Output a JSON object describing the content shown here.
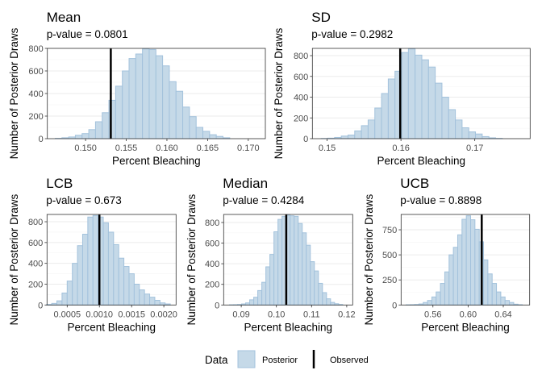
{
  "colors": {
    "bar_fill": "#c5d9e8",
    "bar_stroke": "#a3c2dc",
    "observed": "#000000",
    "grid_major": "#ebebeb",
    "grid_minor": "#f5f5f5",
    "panel_border": "#333333"
  },
  "legend": {
    "title": "Data",
    "items": [
      {
        "label": "Posterior",
        "shape": "filled-square"
      },
      {
        "label": "Observed",
        "shape": "vertical-line"
      }
    ],
    "placement": "bottom"
  },
  "chart_data": [
    {
      "type": "bar",
      "title": "Mean",
      "subtitle": "p-value = 0.0801",
      "xlabel": "Percent Bleaching",
      "ylabel": "Number of Posterior Draws",
      "xlim": [
        0.1453,
        0.1721
      ],
      "ylim": [
        0,
        800
      ],
      "grid": true,
      "xticks": [
        "0.150",
        "0.155",
        "0.160",
        "0.165",
        "0.170"
      ],
      "yticks": [
        "0",
        "200",
        "400",
        "600",
        "800"
      ],
      "bin_start": 0.14627,
      "bin_width": 0.000825,
      "counts": [
        3,
        8,
        15,
        30,
        45,
        80,
        150,
        230,
        340,
        465,
        600,
        710,
        750,
        795,
        790,
        735,
        645,
        505,
        420,
        280,
        195,
        100,
        65,
        35,
        20,
        8
      ],
      "observed": 0.1531
    },
    {
      "type": "bar",
      "title": "SD",
      "subtitle": "p-value = 0.2982",
      "xlabel": "Percent Bleaching",
      "ylabel": "Number of Posterior Draws",
      "xlim": [
        0.148,
        0.1775
      ],
      "ylim": [
        0,
        870
      ],
      "grid": true,
      "xticks": [
        "0.15",
        "0.16",
        "0.17"
      ],
      "yticks": [
        "0",
        "200",
        "400",
        "600",
        "800"
      ],
      "bin_start": 0.14919,
      "bin_width": 0.000909,
      "counts": [
        2,
        5,
        12,
        25,
        35,
        75,
        125,
        180,
        295,
        435,
        575,
        650,
        830,
        865,
        805,
        760,
        690,
        535,
        400,
        280,
        180,
        105,
        65,
        45,
        20,
        8,
        3
      ],
      "observed": 0.1599
    },
    {
      "type": "bar",
      "title": "LCB",
      "subtitle": "p-value = 0.673",
      "xlabel": "Percent Bleaching",
      "ylabel": "Number of Posterior Draws",
      "xlim": [
        0.000187,
        0.00219
      ],
      "ylim": [
        0,
        870
      ],
      "grid": true,
      "xticks": [
        "0.0005",
        "0.0010",
        "0.0015",
        "0.0020"
      ],
      "yticks": [
        "0",
        "200",
        "400",
        "600",
        "800"
      ],
      "bin_start": 0.00018,
      "bin_width": 8e-05,
      "counts": [
        5,
        15,
        40,
        115,
        230,
        400,
        570,
        680,
        845,
        860,
        845,
        790,
        700,
        580,
        450,
        370,
        300,
        200,
        145,
        105,
        75,
        45,
        20,
        10
      ],
      "observed": 0.001
    },
    {
      "type": "bar",
      "title": "Median",
      "subtitle": "p-value = 0.4284",
      "xlabel": "Percent Bleaching",
      "ylabel": "Number of Posterior Draws",
      "xlim": [
        0.085,
        0.1217
      ],
      "ylim": [
        0,
        878
      ],
      "grid": true,
      "xticks": [
        "0.09",
        "0.10",
        "0.11",
        "0.12"
      ],
      "yticks": [
        "0",
        "200",
        "400",
        "600",
        "800"
      ],
      "bin_start": 0.08665,
      "bin_width": 0.00115,
      "counts": [
        2,
        3,
        5,
        10,
        20,
        50,
        75,
        140,
        220,
        370,
        490,
        710,
        830,
        860,
        870,
        865,
        860,
        790,
        700,
        580,
        420,
        330,
        210,
        120,
        60,
        25,
        12,
        5
      ],
      "observed": 0.1028
    },
    {
      "type": "bar",
      "title": "UCB",
      "subtitle": "p-value = 0.8898",
      "xlabel": "Percent Bleaching",
      "ylabel": "Number of Posterior Draws",
      "xlim": [
        0.5238,
        0.67
      ],
      "ylim": [
        0,
        903
      ],
      "grid": true,
      "xticks": [
        "0.56",
        "0.60",
        "0.64"
      ],
      "yticks": [
        "0",
        "250",
        "500",
        "750"
      ],
      "bin_start": 0.52936,
      "bin_width": 0.0049,
      "counts": [
        2,
        3,
        5,
        10,
        25,
        45,
        80,
        130,
        215,
        330,
        500,
        575,
        700,
        855,
        890,
        850,
        755,
        630,
        450,
        310,
        215,
        130,
        80,
        45,
        25,
        8,
        3
      ],
      "observed": 0.6155
    }
  ]
}
